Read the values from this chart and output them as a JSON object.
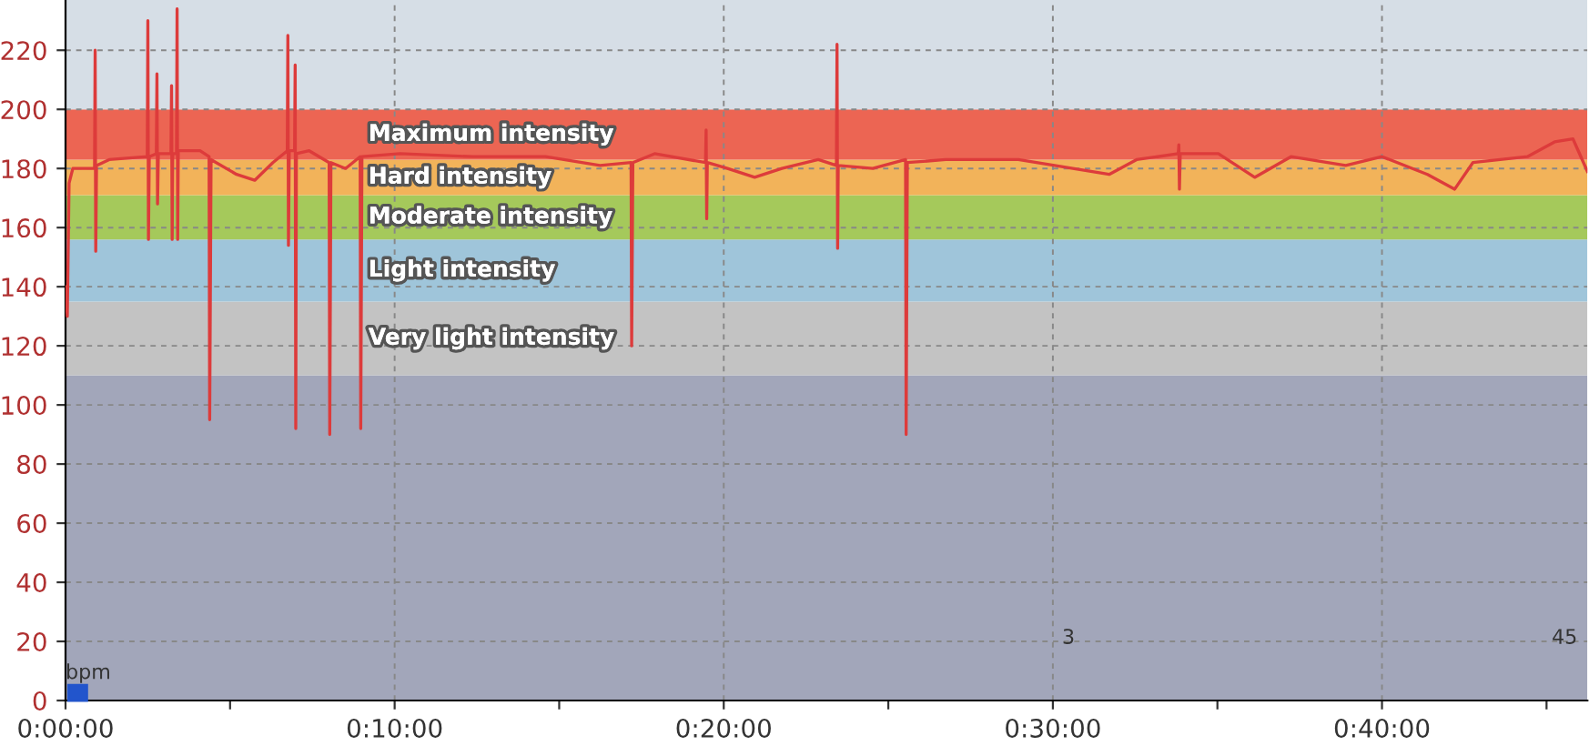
{
  "chart_data": {
    "type": "line",
    "x": [
      0,
      0.0009,
      0.0018,
      0.0037,
      0.0147,
      0.015,
      0.0153,
      0.0157,
      0.0221,
      0.0414,
      0.0417,
      0.042,
      0.0424,
      0.046,
      0.0463,
      0.0466,
      0.047,
      0.0534,
      0.0537,
      0.054,
      0.0543,
      0.0562,
      0.0565,
      0.0568,
      0.0571,
      0.0681,
      0.0727,
      0.073,
      0.0737,
      0.0866,
      0.0958,
      0.105,
      0.1123,
      0.1126,
      0.1129,
      0.1133,
      0.116,
      0.1163,
      0.1166,
      0.1169,
      0.1234,
      0.1335,
      0.1338,
      0.1344,
      0.1418,
      0.1492,
      0.1495,
      0.1501,
      0.1694,
      0.2063,
      0.2431,
      0.2707,
      0.2864,
      0.2867,
      0.2873,
      0.2983,
      0.3241,
      0.3244,
      0.3247,
      0.325,
      0.3352,
      0.349,
      0.3628,
      0.3812,
      0.3904,
      0.3907,
      0.391,
      0.3913,
      0.4088,
      0.4254,
      0.4257,
      0.4263,
      0.4457,
      0.4641,
      0.4825,
      0.5009,
      0.5285,
      0.5424,
      0.5635,
      0.5638,
      0.5641,
      0.5645,
      0.5838,
      0.6022,
      0.6206,
      0.6483,
      0.6667,
      0.6897,
      0.7035,
      0.7127,
      0.7403,
      0.7541,
      0.7634,
      0.7707
    ],
    "series": [
      {
        "color": "#dd3b3b",
        "values": [
          140,
          130,
          175,
          180,
          180,
          220,
          152,
          181,
          183,
          184,
          230,
          156,
          184,
          185,
          212,
          168,
          185,
          185,
          208,
          156,
          185,
          185,
          234,
          156,
          186,
          186,
          184,
          95,
          183,
          178,
          176,
          182,
          186,
          225,
          154,
          186,
          186,
          215,
          92,
          185,
          186,
          182,
          90,
          182,
          180,
          184,
          92,
          184,
          185,
          184,
          184,
          181,
          182,
          120,
          182,
          185,
          182,
          193,
          163,
          182,
          180,
          177,
          180,
          183,
          181,
          222,
          153,
          181,
          180,
          183,
          90,
          182,
          183,
          183,
          183,
          181,
          178,
          183,
          185,
          188,
          173,
          185,
          185,
          177,
          184,
          181,
          184,
          178,
          173,
          182,
          184,
          189,
          190,
          179
        ]
      }
    ],
    "xlim": [
      0,
      0.7707
    ],
    "ylim": [
      0,
      237
    ],
    "xticks": [
      {
        "value": 0,
        "label": "0:00:00"
      },
      {
        "value": 0.08333,
        "label": null
      },
      {
        "value": 0.16667,
        "label": "0:10:00"
      },
      {
        "value": 0.25,
        "label": null
      },
      {
        "value": 0.33333,
        "label": "0:20:00"
      },
      {
        "value": 0.41667,
        "label": null
      },
      {
        "value": 0.5,
        "label": "0:30:00"
      },
      {
        "value": 0.58333,
        "label": null
      },
      {
        "value": 0.66667,
        "label": "0:40:00"
      },
      {
        "value": 0.75,
        "label": null
      }
    ],
    "yticks": [
      0,
      20,
      40,
      60,
      80,
      100,
      120,
      140,
      160,
      180,
      200,
      220
    ],
    "grid": true,
    "line_style": "solid",
    "marker": "none",
    "bands": [
      {
        "axis": "y",
        "from": 0,
        "to": 110,
        "label": null,
        "color": "#a2a6ba"
      },
      {
        "axis": "y",
        "from": 110,
        "to": 135,
        "label": "Very light intensity",
        "color": "#c3c3c3"
      },
      {
        "axis": "y",
        "from": 135,
        "to": 156,
        "label": "Light intensity",
        "color": "#9fc5da"
      },
      {
        "axis": "y",
        "from": 156,
        "to": 171,
        "label": "Moderate intensity",
        "color": "#a5c95b"
      },
      {
        "axis": "y",
        "from": 171,
        "to": 183,
        "label": "Hard intensity",
        "color": "#f2b35a"
      },
      {
        "axis": "y",
        "from": 183,
        "to": 200,
        "label": "Maximum intensity",
        "color": "#ec6553"
      },
      {
        "axis": "y",
        "from": 200,
        "to": 237,
        "label": null,
        "color": "#d6dee6"
      }
    ],
    "annotations": [
      "bpm",
      "3",
      "45"
    ]
  }
}
